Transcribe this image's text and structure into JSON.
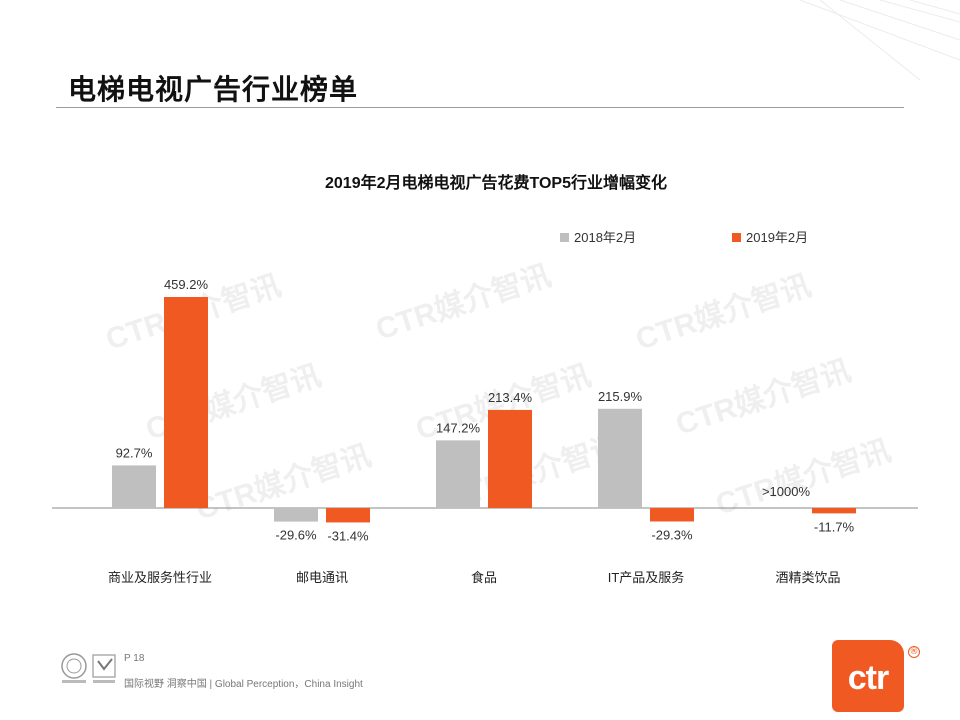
{
  "page": {
    "title": "电梯电视广告行业榜单",
    "page_number": "P 18",
    "tagline": "国际视野 洞察中国 | Global Perception，China Insight",
    "logo_text": "ctr",
    "logo_mark": "®",
    "watermark": "CTR媒介智讯"
  },
  "colors": {
    "series_2018": "#bfbfbf",
    "series_2019": "#f05a22",
    "brand": "#f05a22"
  },
  "chart_data": {
    "type": "bar",
    "title": "2019年2月电梯电视广告花费TOP5行业增幅变化",
    "categories": [
      "商业及服务性行业",
      "邮电通讯",
      "食品",
      "IT产品及服务",
      "酒精类饮品"
    ],
    "series": [
      {
        "name": "2018年2月",
        "values": [
          92.7,
          -29.6,
          147.2,
          215.9,
          null
        ],
        "labels": [
          "92.7%",
          "-29.6%",
          "147.2%",
          "215.9%",
          ">1000%"
        ]
      },
      {
        "name": "2019年2月",
        "values": [
          459.2,
          -31.4,
          213.4,
          -29.3,
          -11.7
        ],
        "labels": [
          "459.2%",
          "-31.4%",
          "213.4%",
          "-29.3%",
          "-11.7%"
        ]
      }
    ],
    "legend_position": "top-right",
    "ylim": [
      -60,
      500
    ],
    "grid": false,
    "axis_ticks": false
  }
}
